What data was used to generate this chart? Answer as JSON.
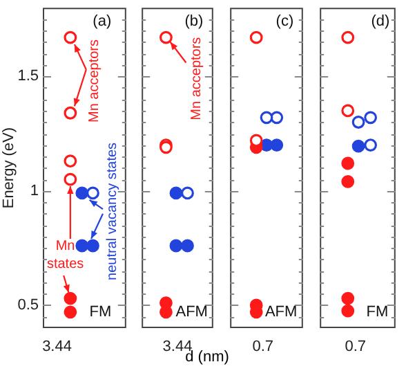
{
  "chart_data": [
    {
      "type": "scatter",
      "ylabel": "Energy (eV)",
      "categories": [
        "3.44"
      ],
      "ylim": [
        0.4,
        1.8
      ],
      "yticks": [
        {
          "value": 0.45,
          "label": null
        },
        {
          "value": 0.5,
          "label": "0.5"
        },
        {
          "value": 0.55,
          "label": null
        },
        {
          "value": 0.6,
          "label": null
        },
        {
          "value": 0.65,
          "label": null
        },
        {
          "value": 0.7,
          "label": null
        },
        {
          "value": 0.75,
          "label": null
        },
        {
          "value": 0.8,
          "label": null
        },
        {
          "value": 0.85,
          "label": null
        },
        {
          "value": 0.9,
          "label": null
        },
        {
          "value": 0.95,
          "label": null
        },
        {
          "value": 1,
          "label": "1"
        },
        {
          "value": 1.05,
          "label": null
        },
        {
          "value": 1.1,
          "label": null
        },
        {
          "value": 1.15,
          "label": null
        },
        {
          "value": 1.2,
          "label": null
        },
        {
          "value": 1.25,
          "label": null
        },
        {
          "value": 1.3,
          "label": null
        },
        {
          "value": 1.35,
          "label": null
        },
        {
          "value": 1.4,
          "label": null
        },
        {
          "value": 1.45,
          "label": null
        },
        {
          "value": 1.5,
          "label": "1.5"
        },
        {
          "value": 1.55,
          "label": null
        },
        {
          "value": 1.6,
          "label": null
        },
        {
          "value": 1.65,
          "label": null
        },
        {
          "value": 1.7,
          "label": null
        },
        {
          "value": 1.75,
          "label": null
        }
      ],
      "grid": false,
      "legend": false,
      "marker": "circle",
      "annotations": [
        "(a)",
        "FM",
        "Mn acceptors",
        "Mn states",
        "neutral vacancy states"
      ],
      "series": [
        {
          "color": "#ff1a1a",
          "x": [
            "3.44",
            "3.44",
            "3.44",
            "3.44"
          ],
          "values": [
            1.67,
            1.34,
            1.13,
            1.05
          ]
        },
        {
          "color": "#ff1a1a",
          "x": [
            "3.44",
            "3.44"
          ],
          "values": [
            0.53,
            0.47
          ]
        },
        {
          "color": "#2244dd",
          "x": [
            "3.44",
            "3.44"
          ],
          "values": [
            0.99,
            0.76
          ]
        },
        {
          "color": "#2244dd",
          "x": [
            "3.44"
          ],
          "values": [
            0.99
          ]
        },
        {
          "color": "#2244dd",
          "x": [
            "3.44"
          ],
          "values": [
            0.76
          ]
        }
      ]
    },
    {
      "type": "scatter",
      "categories": [
        "3.44"
      ],
      "ylim": [
        0.4,
        1.8
      ],
      "yticks": [
        {
          "value": 0.45,
          "label": null
        },
        {
          "value": 0.5,
          "label": null
        },
        {
          "value": 0.55,
          "label": null
        },
        {
          "value": 0.6,
          "label": null
        },
        {
          "value": 0.65,
          "label": null
        },
        {
          "value": 0.7,
          "label": null
        },
        {
          "value": 0.75,
          "label": null
        },
        {
          "value": 0.8,
          "label": null
        },
        {
          "value": 0.85,
          "label": null
        },
        {
          "value": 0.9,
          "label": null
        },
        {
          "value": 0.95,
          "label": null
        },
        {
          "value": 1,
          "label": null
        },
        {
          "value": 1.05,
          "label": null
        },
        {
          "value": 1.1,
          "label": null
        },
        {
          "value": 1.15,
          "label": null
        },
        {
          "value": 1.2,
          "label": null
        },
        {
          "value": 1.25,
          "label": null
        },
        {
          "value": 1.3,
          "label": null
        },
        {
          "value": 1.35,
          "label": null
        },
        {
          "value": 1.4,
          "label": null
        },
        {
          "value": 1.45,
          "label": null
        },
        {
          "value": 1.5,
          "label": null
        },
        {
          "value": 1.55,
          "label": null
        },
        {
          "value": 1.6,
          "label": null
        },
        {
          "value": 1.65,
          "label": null
        },
        {
          "value": 1.7,
          "label": null
        },
        {
          "value": 1.75,
          "label": null
        }
      ],
      "tick_labels": "x",
      "grid": false,
      "legend": false,
      "marker": "circle",
      "annotations": [
        "(b)",
        "AFM",
        "Mn acceptors"
      ],
      "series": [
        {
          "color": "#ff1a1a",
          "x": [
            "3.44",
            "3.44",
            "3.44"
          ],
          "values": [
            1.67,
            1.2,
            1.19
          ]
        },
        {
          "color": "#ff1a1a",
          "x": [
            "3.44",
            "3.44"
          ],
          "values": [
            0.51,
            0.47
          ]
        },
        {
          "color": "#2244dd",
          "x": [
            "3.44",
            "3.44"
          ],
          "values": [
            0.99,
            0.76
          ]
        },
        {
          "color": "#2244dd",
          "x": [
            "3.44"
          ],
          "values": [
            0.99
          ]
        },
        {
          "color": "#2244dd",
          "x": [
            "3.44"
          ],
          "values": [
            0.76
          ]
        }
      ]
    },
    {
      "type": "scatter",
      "xlabel": "d (nm)",
      "categories": [
        "0.7"
      ],
      "ylim": [
        0.4,
        1.8
      ],
      "yticks": [
        {
          "value": 0.45,
          "label": null
        },
        {
          "value": 0.5,
          "label": null
        },
        {
          "value": 0.55,
          "label": null
        },
        {
          "value": 0.6,
          "label": null
        },
        {
          "value": 0.65,
          "label": null
        },
        {
          "value": 0.7,
          "label": null
        },
        {
          "value": 0.75,
          "label": null
        },
        {
          "value": 0.8,
          "label": null
        },
        {
          "value": 0.85,
          "label": null
        },
        {
          "value": 0.9,
          "label": null
        },
        {
          "value": 0.95,
          "label": null
        },
        {
          "value": 1,
          "label": null
        },
        {
          "value": 1.05,
          "label": null
        },
        {
          "value": 1.1,
          "label": null
        },
        {
          "value": 1.15,
          "label": null
        },
        {
          "value": 1.2,
          "label": null
        },
        {
          "value": 1.25,
          "label": null
        },
        {
          "value": 1.3,
          "label": null
        },
        {
          "value": 1.35,
          "label": null
        },
        {
          "value": 1.4,
          "label": null
        },
        {
          "value": 1.45,
          "label": null
        },
        {
          "value": 1.5,
          "label": null
        },
        {
          "value": 1.55,
          "label": null
        },
        {
          "value": 1.6,
          "label": null
        },
        {
          "value": 1.65,
          "label": null
        },
        {
          "value": 1.7,
          "label": null
        },
        {
          "value": 1.75,
          "label": null
        }
      ],
      "tick_labels": "x",
      "grid": false,
      "legend": false,
      "marker": "circle",
      "annotations": [
        "(c)",
        "AFM"
      ],
      "series": [
        {
          "color": "#ff1a1a",
          "x": [
            "0.7",
            "0.7"
          ],
          "values": [
            1.67,
            1.22
          ]
        },
        {
          "color": "#ff1a1a",
          "x": [
            "0.7",
            "0.7",
            "0.7"
          ],
          "values": [
            1.19,
            0.5,
            0.47
          ]
        },
        {
          "color": "#2244dd",
          "x": [
            "0.7"
          ],
          "values": [
            1.2
          ]
        },
        {
          "color": "#2244dd",
          "x": [
            "0.7"
          ],
          "values": [
            1.32
          ]
        },
        {
          "color": "#2244dd",
          "x": [
            "0.7"
          ],
          "values": [
            1.32
          ]
        },
        {
          "color": "#2244dd",
          "x": [
            "0.7"
          ],
          "values": [
            1.2
          ]
        }
      ]
    },
    {
      "type": "scatter",
      "categories": [
        "0.7"
      ],
      "ylim": [
        0.4,
        1.8
      ],
      "yticks": [
        {
          "value": 0.45,
          "label": null
        },
        {
          "value": 0.5,
          "label": null
        },
        {
          "value": 0.55,
          "label": null
        },
        {
          "value": 0.6,
          "label": null
        },
        {
          "value": 0.65,
          "label": null
        },
        {
          "value": 0.7,
          "label": null
        },
        {
          "value": 0.75,
          "label": null
        },
        {
          "value": 0.8,
          "label": null
        },
        {
          "value": 0.85,
          "label": null
        },
        {
          "value": 0.9,
          "label": null
        },
        {
          "value": 0.95,
          "label": null
        },
        {
          "value": 1,
          "label": null
        },
        {
          "value": 1.05,
          "label": null
        },
        {
          "value": 1.1,
          "label": null
        },
        {
          "value": 1.15,
          "label": null
        },
        {
          "value": 1.2,
          "label": null
        },
        {
          "value": 1.25,
          "label": null
        },
        {
          "value": 1.3,
          "label": null
        },
        {
          "value": 1.35,
          "label": null
        },
        {
          "value": 1.4,
          "label": null
        },
        {
          "value": 1.45,
          "label": null
        },
        {
          "value": 1.5,
          "label": null
        },
        {
          "value": 1.55,
          "label": null
        },
        {
          "value": 1.6,
          "label": null
        },
        {
          "value": 1.65,
          "label": null
        },
        {
          "value": 1.7,
          "label": null
        },
        {
          "value": 1.75,
          "label": null
        }
      ],
      "tick_labels": "x",
      "grid": false,
      "legend": false,
      "marker": "circle",
      "annotations": [
        "(d)",
        "FM"
      ],
      "series": [
        {
          "color": "#ff1a1a",
          "x": [
            "0.7",
            "0.7"
          ],
          "values": [
            1.67,
            1.35
          ]
        },
        {
          "color": "#ff1a1a",
          "x": [
            "0.7",
            "0.7",
            "0.7",
            "0.7"
          ],
          "values": [
            1.12,
            1.04,
            0.53,
            0.475
          ]
        },
        {
          "color": "#2244dd",
          "x": [
            "0.7"
          ],
          "values": [
            1.195
          ]
        },
        {
          "color": "#2244dd",
          "x": [
            "0.7"
          ],
          "values": [
            1.3
          ]
        },
        {
          "color": "#2244dd",
          "x": [
            "0.7",
            "0.7"
          ],
          "values": [
            1.32,
            1.2
          ]
        }
      ]
    }
  ]
}
